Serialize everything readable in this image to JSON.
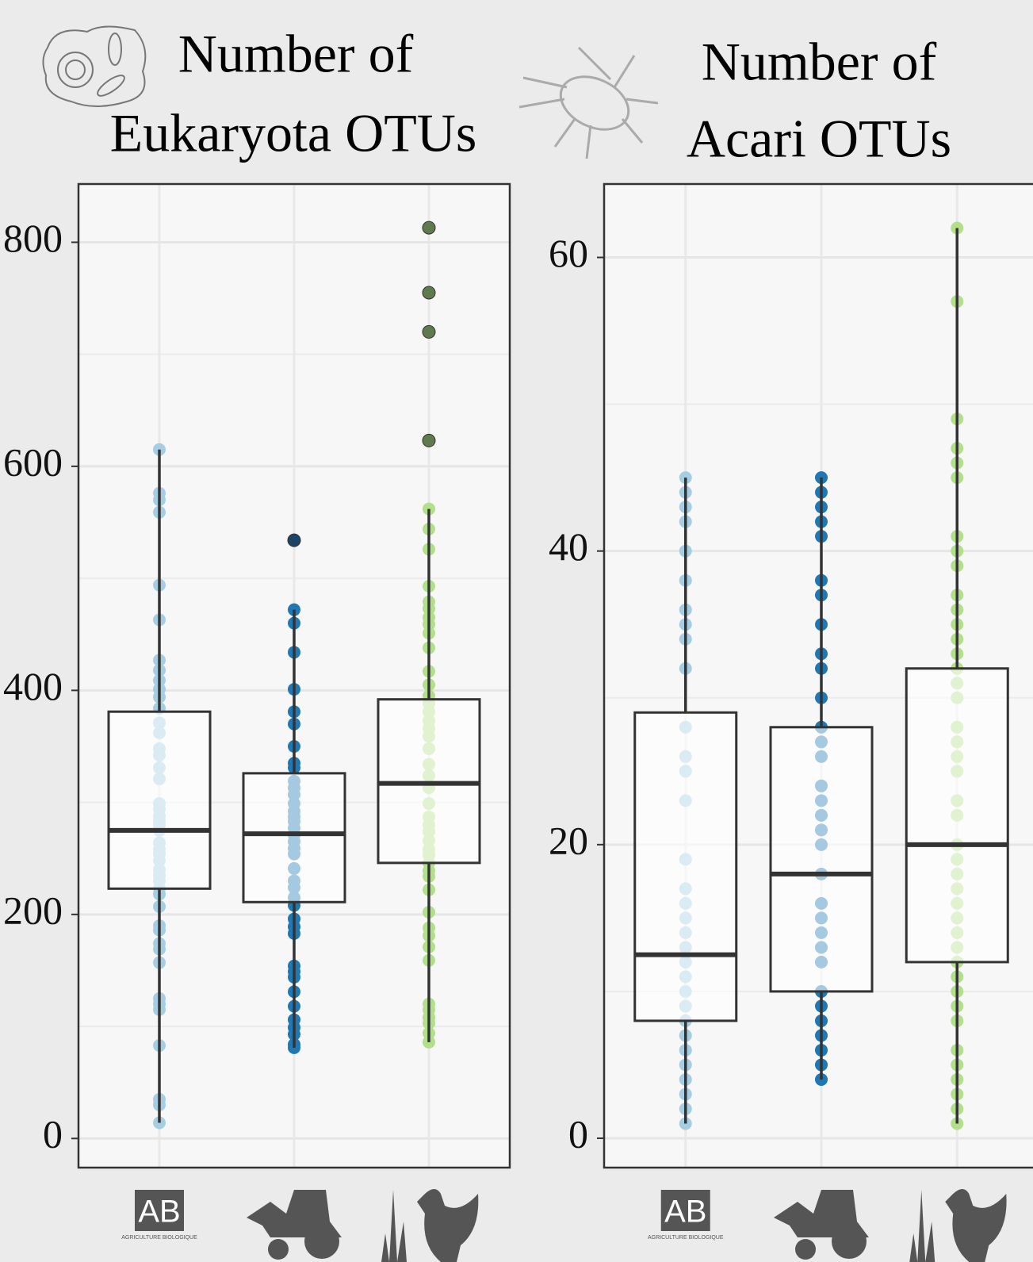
{
  "chart_data": [
    {
      "type": "box",
      "title": [
        "Number of",
        "Eukaryota OTUs"
      ],
      "categories": [
        "AB",
        null,
        null
      ],
      "logo_caption": "AGRICULTURE BIOLOGIQUE",
      "ylim": [
        -26,
        852
      ],
      "yticks": [
        0,
        200,
        400,
        600,
        800
      ],
      "grid": true,
      "boxes": [
        {
          "color": "#a6cee3",
          "outlier_color": "#2b4f66",
          "whisker_low": 14,
          "q1": 223,
          "median": 275,
          "q3": 381,
          "whisker_high": 615,
          "outliers": [],
          "points": [
            615,
            576,
            570,
            559,
            494,
            463,
            427,
            418,
            409,
            401,
            394,
            384,
            371,
            362,
            348,
            342,
            331,
            321,
            299,
            294,
            288,
            284,
            280,
            275,
            264,
            258,
            254,
            248,
            240,
            235,
            230,
            223,
            218,
            207,
            190,
            186,
            174,
            169,
            157,
            125,
            120,
            115,
            83,
            35,
            30,
            14
          ]
        },
        {
          "color": "#1f78b4",
          "outlier_color": "#1e4465",
          "whisker_low": 81,
          "q1": 211,
          "median": 272,
          "q3": 326,
          "whisker_high": 472,
          "outliers": [
            534
          ],
          "points": [
            472,
            460,
            434,
            401,
            381,
            370,
            350,
            335,
            331,
            319,
            313,
            307,
            299,
            292,
            287,
            283,
            277,
            271,
            265,
            259,
            254,
            241,
            230,
            224,
            215,
            208,
            196,
            189,
            183,
            154,
            149,
            144,
            131,
            118,
            106,
            99,
            93,
            84,
            81
          ]
        },
        {
          "color": "#b2df8a",
          "outlier_color": "#5f7a4c",
          "whisker_low": 86,
          "q1": 246,
          "median": 317,
          "q3": 392,
          "whisker_high": 562,
          "outliers": [
            813,
            755,
            720,
            623
          ],
          "points": [
            562,
            544,
            526,
            493,
            479,
            473,
            465,
            459,
            451,
            438,
            417,
            405,
            395,
            388,
            381,
            373,
            366,
            359,
            348,
            334,
            324,
            313,
            299,
            287,
            280,
            274,
            266,
            258,
            253,
            246,
            239,
            234,
            222,
            202,
            188,
            181,
            171,
            159,
            120,
            115,
            108,
            103,
            94,
            86
          ]
        }
      ]
    },
    {
      "type": "box",
      "title": [
        "Number of",
        "Acari OTUs"
      ],
      "categories": [
        "AB",
        null,
        null
      ],
      "logo_caption": "AGRICULTURE BIOLOGIQUE",
      "ylim": [
        -2,
        65
      ],
      "yticks": [
        0,
        20,
        40,
        60
      ],
      "grid": true,
      "boxes": [
        {
          "color": "#a6cee3",
          "outlier_color": "#2b4f66",
          "whisker_low": 1,
          "q1": 8,
          "median": 12.5,
          "q3": 29,
          "whisker_high": 45,
          "outliers": [],
          "points": [
            45,
            44,
            43,
            42,
            40,
            38,
            36,
            35,
            34,
            32,
            28,
            26,
            25,
            23,
            19,
            17,
            16,
            15,
            14,
            13,
            12,
            11,
            10,
            9,
            8,
            7,
            6,
            5,
            4,
            3,
            2,
            1
          ]
        },
        {
          "color": "#1f78b4",
          "outlier_color": "#1e4465",
          "whisker_low": 4,
          "q1": 10,
          "median": 18,
          "q3": 28,
          "whisker_high": 45,
          "outliers": [],
          "points": [
            45,
            44,
            43,
            42,
            41,
            38,
            37,
            35,
            33,
            32,
            30,
            28,
            27,
            26,
            24,
            23,
            22,
            21,
            20,
            18,
            16,
            15,
            14,
            13,
            12,
            10,
            9,
            8,
            7,
            6,
            5,
            4
          ]
        },
        {
          "color": "#b2df8a",
          "outlier_color": "#5f7a4c",
          "whisker_low": 1,
          "q1": 12,
          "median": 20,
          "q3": 32,
          "whisker_high": 62,
          "outliers": [],
          "points": [
            62,
            57,
            49,
            47,
            46,
            45,
            41,
            40,
            39,
            37,
            36,
            35,
            34,
            33,
            32,
            31,
            30,
            28,
            27,
            26,
            25,
            23,
            22,
            20,
            19,
            18,
            17,
            16,
            15,
            14,
            13,
            12,
            11,
            10,
            9,
            8,
            6,
            5,
            4,
            3,
            2,
            1
          ]
        }
      ]
    }
  ]
}
